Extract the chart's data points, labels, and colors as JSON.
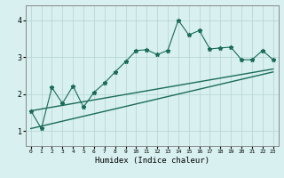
{
  "xlabel": "Humidex (Indice chaleur)",
  "bg_color": "#d8f0f0",
  "grid_color": "#b8d8d8",
  "line_color": "#1a6b5a",
  "xlim": [
    -0.5,
    23.5
  ],
  "ylim": [
    0.6,
    4.4
  ],
  "x_ticks": [
    0,
    1,
    2,
    3,
    4,
    5,
    6,
    7,
    8,
    9,
    10,
    11,
    12,
    13,
    14,
    15,
    16,
    17,
    18,
    19,
    20,
    21,
    22,
    23
  ],
  "y_ticks": [
    1,
    2,
    3,
    4
  ],
  "jagged_x": [
    0,
    1,
    2,
    3,
    4,
    5,
    6,
    7,
    8,
    9,
    10,
    11,
    12,
    13,
    14,
    15,
    16,
    17,
    18,
    19,
    20,
    21,
    22,
    23
  ],
  "jagged_y": [
    1.55,
    1.07,
    2.18,
    1.75,
    2.22,
    1.65,
    2.05,
    2.3,
    2.6,
    2.88,
    3.18,
    3.2,
    3.07,
    3.18,
    4.0,
    3.6,
    3.72,
    3.22,
    3.25,
    3.27,
    2.93,
    2.93,
    3.18,
    2.93
  ],
  "upper_line_x": [
    0,
    23
  ],
  "upper_line_y": [
    1.55,
    2.68
  ],
  "lower_line_x": [
    0,
    23
  ],
  "lower_line_y": [
    1.07,
    2.6
  ]
}
